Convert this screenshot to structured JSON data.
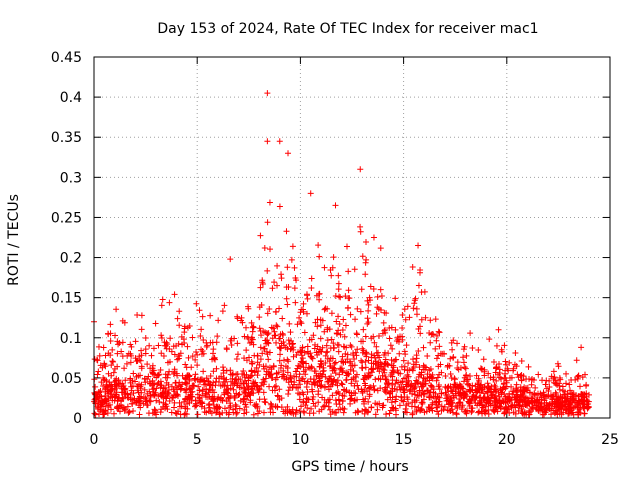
{
  "chart_data": {
    "type": "scatter",
    "title": "Day 153 of 2024, Rate Of TEC Index for receiver mac1",
    "xlabel": "GPS time / hours",
    "ylabel": "ROTI / TECUs",
    "xlim": [
      0,
      25
    ],
    "ylim": [
      0,
      0.45
    ],
    "xticks": [
      "0",
      "5",
      "10",
      "15",
      "20",
      "25"
    ],
    "yticks": [
      "0",
      "0.05",
      "0.1",
      "0.15",
      "0.2",
      "0.25",
      "0.3",
      "0.35",
      "0.4",
      "0.45"
    ],
    "grid": true,
    "marker": "+",
    "color": "#ff0000",
    "envelope": {
      "hours": [
        0.0,
        0.3,
        0.6,
        1.0,
        1.5,
        2.0,
        2.3,
        2.7,
        3.0,
        3.5,
        3.8,
        4.2,
        4.7,
        5.0,
        5.5,
        6.0,
        6.5,
        7.0,
        7.5,
        8.0,
        8.3,
        8.6,
        9.0,
        9.3,
        9.6,
        10.0,
        10.5,
        11.0,
        11.5,
        12.0,
        12.5,
        12.9,
        13.3,
        13.8,
        14.3,
        14.8,
        15.3,
        15.6,
        16.0,
        16.5,
        17.0,
        17.5,
        18.0,
        18.5,
        19.0,
        19.5,
        20.0,
        20.5,
        21.0,
        21.5,
        22.0,
        22.5,
        23.0,
        23.5,
        24.0
      ],
      "upper": [
        0.12,
        0.09,
        0.11,
        0.14,
        0.12,
        0.13,
        0.15,
        0.12,
        0.13,
        0.16,
        0.18,
        0.14,
        0.16,
        0.14,
        0.13,
        0.14,
        0.15,
        0.13,
        0.14,
        0.2,
        0.34,
        0.28,
        0.34,
        0.32,
        0.27,
        0.2,
        0.27,
        0.2,
        0.2,
        0.26,
        0.2,
        0.3,
        0.21,
        0.25,
        0.17,
        0.19,
        0.2,
        0.21,
        0.18,
        0.13,
        0.11,
        0.1,
        0.12,
        0.1,
        0.1,
        0.1,
        0.09,
        0.08,
        0.07,
        0.06,
        0.07,
        0.07,
        0.06,
        0.08,
        0.07
      ],
      "median": [
        0.03,
        0.03,
        0.03,
        0.035,
        0.035,
        0.035,
        0.04,
        0.035,
        0.04,
        0.04,
        0.045,
        0.04,
        0.04,
        0.035,
        0.035,
        0.035,
        0.04,
        0.04,
        0.045,
        0.06,
        0.08,
        0.08,
        0.085,
        0.08,
        0.07,
        0.065,
        0.07,
        0.065,
        0.065,
        0.07,
        0.065,
        0.07,
        0.06,
        0.06,
        0.05,
        0.05,
        0.055,
        0.055,
        0.05,
        0.035,
        0.03,
        0.03,
        0.03,
        0.03,
        0.03,
        0.03,
        0.025,
        0.025,
        0.025,
        0.02,
        0.02,
        0.02,
        0.02,
        0.02,
        0.02
      ]
    },
    "highlights": [
      {
        "x": 8.4,
        "y": 0.405
      },
      {
        "x": 9.0,
        "y": 0.345
      },
      {
        "x": 8.4,
        "y": 0.345
      },
      {
        "x": 9.4,
        "y": 0.33
      },
      {
        "x": 12.9,
        "y": 0.31
      },
      {
        "x": 6.6,
        "y": 0.198
      },
      {
        "x": 10.5,
        "y": 0.28
      },
      {
        "x": 11.7,
        "y": 0.265
      },
      {
        "x": 0.0,
        "y": 0.12
      },
      {
        "x": 23.6,
        "y": 0.088
      },
      {
        "x": 19.6,
        "y": 0.11
      },
      {
        "x": 15.7,
        "y": 0.215
      }
    ]
  }
}
